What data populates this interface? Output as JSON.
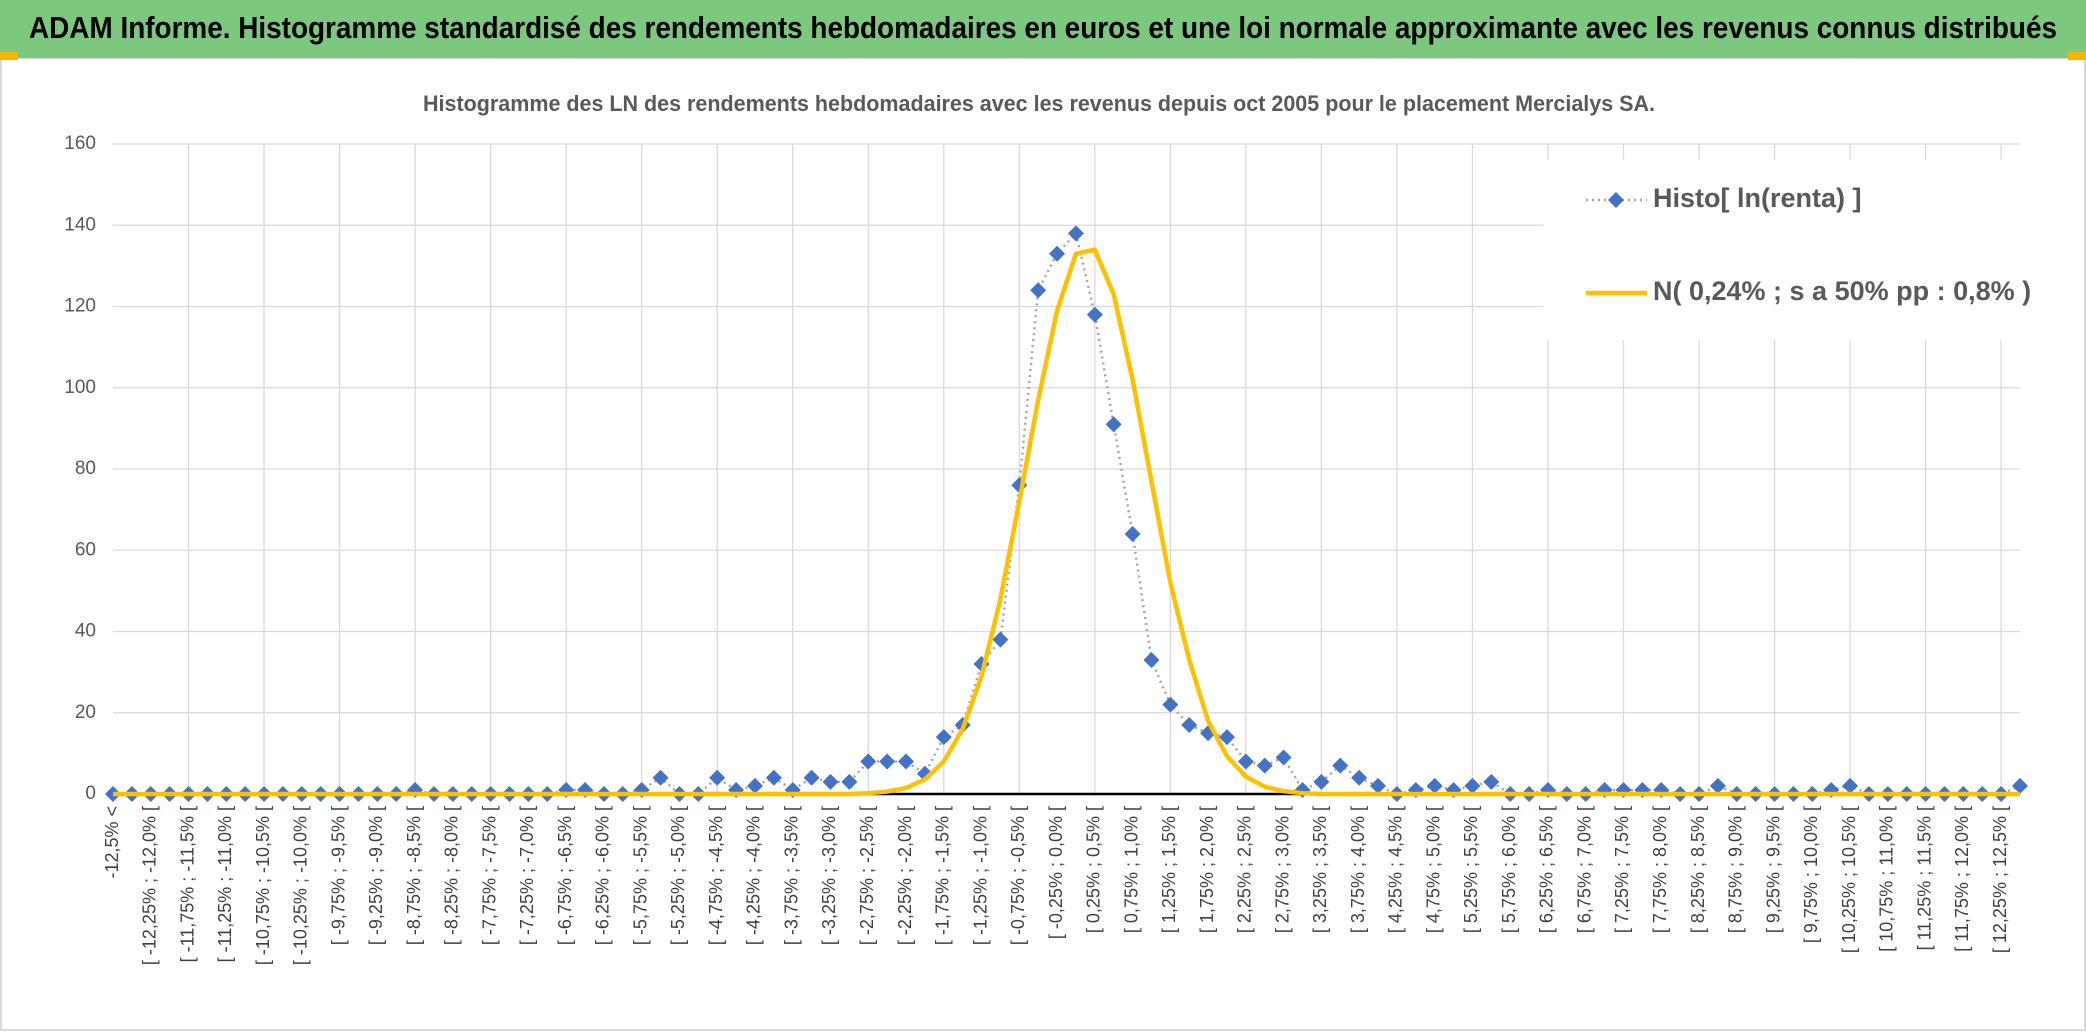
{
  "chart_data": {
    "type": "line",
    "title": "ADAM Informe. Histogramme standardisé des rendements hebdomadaires en euros et une loi normale approximante avec les revenus connus distribués",
    "subtitle": "Histogramme des LN des rendements hebdomadaires avec les revenus depuis oct 2005 pour le placement Mercialys SA.",
    "categories": [
      "-12,5% <",
      null,
      "[ -12,25% ; -12,0% [",
      null,
      "[ -11,75% ; -11,5% [",
      null,
      "[ -11,25% ; -11,0% [",
      null,
      "[ -10,75% ; -10,5% [",
      null,
      "[ -10,25% ; -10,0% [",
      null,
      "[ -9,75% ; -9,5% [",
      null,
      "[ -9,25% ; -9,0% [",
      null,
      "[ -8,75% ; -8,5% [",
      null,
      "[ -8,25% ; -8,0% [",
      null,
      "[ -7,75% ; -7,5% [",
      null,
      "[ -7,25% ; -7,0% [",
      null,
      "[ -6,75% ; -6,5% [",
      null,
      "[ -6,25% ; -6,0% [",
      null,
      "[ -5,75% ; -5,5% [",
      null,
      "[ -5,25% ; -5,0% [",
      null,
      "[ -4,75% ; -4,5% [",
      null,
      "[ -4,25% ; -4,0% [",
      null,
      "[ -3,75% ; -3,5% [",
      null,
      "[ -3,25% ; -3,0% [",
      null,
      "[ -2,75% ; -2,5% [",
      null,
      "[ -2,25% ; -2,0% [",
      null,
      "[ -1,75% ; -1,5% [",
      null,
      "[ -1,25% ; -1,0% [",
      null,
      "[ -0,75% ; -0,5% [",
      null,
      "[ -0,25% ; 0,0% [",
      null,
      "[ 0,25% ; 0,5% [",
      null,
      "[ 0,75% ; 1,0% [",
      null,
      "[ 1,25% ; 1,5% [",
      null,
      "[ 1,75% ; 2,0% [",
      null,
      "[ 2,25% ; 2,5% [",
      null,
      "[ 2,75% ; 3,0% [",
      null,
      "[ 3,25% ; 3,5% [",
      null,
      "[ 3,75% ; 4,0% [",
      null,
      "[ 4,25% ; 4,5% [",
      null,
      "[ 4,75% ; 5,0% [",
      null,
      "[ 5,25% ; 5,5% [",
      null,
      "[ 5,75% ; 6,0% [",
      null,
      "[ 6,25% ; 6,5% [",
      null,
      "[ 6,75% ; 7,0% [",
      null,
      "[ 7,25% ; 7,5% [",
      null,
      "[ 7,75% ; 8,0% [",
      null,
      "[ 8,25% ; 8,5% [",
      null,
      "[ 8,75% ; 9,0% [",
      null,
      "[ 9,25% ; 9,5% [",
      null,
      "[ 9,75% ; 10,0% [",
      null,
      "[ 10,25% ; 10,5% [",
      null,
      "[ 10,75% ; 11,0% [",
      null,
      "[ 11,25% ; 11,5% [",
      null,
      "[ 11,75% ; 12,0% [",
      null,
      "[ 12,25% ; 12,5% [",
      null
    ],
    "series": [
      {
        "name": "Histo[ ln(renta) ]",
        "color": "#4472c4",
        "line_color": "#a5a5a5",
        "marker": "diamond",
        "values": [
          0,
          0,
          0,
          0,
          0,
          0,
          0,
          0,
          0,
          0,
          0,
          0,
          0,
          0,
          0,
          0,
          1,
          0,
          0,
          0,
          0,
          0,
          0,
          0,
          1,
          1,
          0,
          0,
          1,
          4,
          0,
          0,
          4,
          1,
          2,
          4,
          1,
          4,
          3,
          3,
          8,
          8,
          8,
          5,
          14,
          17,
          32,
          38,
          76,
          124,
          133,
          138,
          118,
          91,
          64,
          33,
          22,
          17,
          15,
          14,
          8,
          7,
          9,
          1,
          3,
          7,
          4,
          2,
          0,
          1,
          2,
          1,
          2,
          3,
          0,
          0,
          1,
          0,
          0,
          1,
          1,
          1,
          1,
          0,
          0,
          2,
          0,
          0,
          0,
          0,
          0,
          1,
          2,
          0,
          0,
          0,
          0,
          0,
          0,
          0,
          0,
          2
        ]
      },
      {
        "name": "N( 0,24% ; s a 50% pp : 0,8% )",
        "color": "#ffc000",
        "values": [
          0,
          0,
          0,
          0,
          0,
          0,
          0,
          0,
          0,
          0,
          0,
          0,
          0,
          0,
          0,
          0,
          0,
          0,
          0,
          0,
          0,
          0,
          0,
          0,
          0,
          0,
          0,
          0,
          0,
          0,
          0,
          0,
          0,
          0,
          0,
          0,
          0,
          0,
          0,
          0,
          0.2,
          0.6,
          1.5,
          3.6,
          8,
          16,
          29,
          48,
          72,
          97,
          119,
          133,
          134,
          123,
          102,
          77,
          52,
          33,
          18,
          9.3,
          4.3,
          1.8,
          0.7,
          0.2,
          0,
          0,
          0,
          0,
          0,
          0,
          0,
          0,
          0,
          0,
          0,
          0,
          0,
          0,
          0,
          0,
          0,
          0,
          0,
          0,
          0,
          0,
          0,
          0,
          0,
          0,
          0,
          0,
          0,
          0,
          0,
          0,
          0,
          0,
          0,
          0,
          0,
          0
        ]
      }
    ],
    "ylim": [
      0,
      160
    ],
    "yticks": [
      0,
      20,
      40,
      60,
      80,
      100,
      120,
      140,
      160
    ],
    "grid": true,
    "legend": "top-right"
  }
}
